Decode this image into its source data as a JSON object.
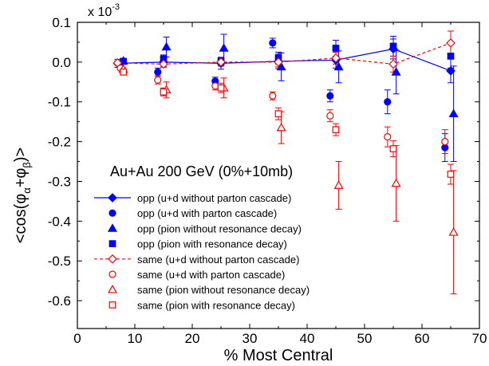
{
  "chart_data": {
    "type": "scatter",
    "title": "",
    "xlabel": "% Most Central",
    "ylabel": "<cos(φα+φβ)>",
    "scale_label": "x 10-3",
    "annotation": "Au+Au 200 GeV (0%+10mb)",
    "xlim": [
      0,
      70
    ],
    "ylim": [
      -0.67,
      0.1
    ],
    "x_ticks": [
      "0",
      "10",
      "20",
      "30",
      "40",
      "50",
      "60",
      "70"
    ],
    "y_ticks": [
      "0.1",
      "0.0",
      "-0.1",
      "-0.2",
      "-0.3",
      "-0.4",
      "-0.5",
      "-0.6"
    ],
    "grid": false,
    "legend_position": "bottom-left",
    "colors": {
      "opp": "#0000ff",
      "same": "#ff0000"
    },
    "series": [
      {
        "name": "opp  (u+d without parton cascade)",
        "color": "#0000ff",
        "marker": "diamond-filled",
        "line": "solid",
        "x": [
          7,
          15,
          25,
          35,
          45,
          55,
          65
        ],
        "y": [
          -0.003,
          0.0,
          -0.003,
          0.002,
          0.005,
          0.033,
          -0.022
        ],
        "err": [
          0.01,
          0.012,
          0.015,
          0.018,
          0.02,
          0.025,
          0.03
        ]
      },
      {
        "name": "opp  (u+d with parton cascade)",
        "color": "#0000ff",
        "marker": "circle-filled",
        "line": "none",
        "x": [
          7.5,
          14,
          24,
          34,
          44,
          54,
          64
        ],
        "y": [
          -0.005,
          -0.025,
          -0.048,
          0.048,
          -0.085,
          -0.1,
          -0.215
        ],
        "err": [
          0.005,
          0.01,
          0.01,
          0.012,
          0.015,
          0.03,
          0.035
        ]
      },
      {
        "name": "opp  (pion without resonance decay)",
        "color": "#0000ff",
        "marker": "triangle-filled",
        "line": "none",
        "x": [
          8,
          15.5,
          25.5,
          35.5,
          45.5,
          55.5,
          65.5
        ],
        "y": [
          0.003,
          0.038,
          0.035,
          -0.012,
          -0.012,
          -0.025,
          -0.13
        ],
        "err": [
          0.005,
          0.025,
          0.035,
          0.035,
          0.04,
          0.055,
          0.12
        ]
      },
      {
        "name": "opp  (pion with resonance decay)",
        "color": "#0000ff",
        "marker": "square-filled",
        "line": "none",
        "x": [
          8,
          15,
          25,
          35,
          45,
          55,
          65
        ],
        "y": [
          0.002,
          0.008,
          0.002,
          0.01,
          0.035,
          0.04,
          0.015
        ],
        "err": [
          0.005,
          0.01,
          0.01,
          0.015,
          0.02,
          0.025,
          0.03
        ]
      },
      {
        "name": "same (u+d without parton cascade)",
        "color": "#ff0000",
        "marker": "diamond-open",
        "line": "dashed",
        "x": [
          7,
          15,
          25,
          35,
          45,
          55,
          65
        ],
        "y": [
          -0.002,
          -0.005,
          0.0,
          0.0,
          0.01,
          -0.005,
          0.048
        ],
        "err": [
          0.005,
          0.008,
          0.01,
          0.012,
          0.015,
          0.02,
          0.03
        ]
      },
      {
        "name": "same (u+d with parton cascade)",
        "color": "#ff0000",
        "marker": "circle-open",
        "line": "none",
        "x": [
          7.5,
          14,
          24,
          34,
          44,
          54,
          64
        ],
        "y": [
          -0.015,
          -0.045,
          -0.06,
          -0.085,
          -0.135,
          -0.188,
          -0.2
        ],
        "err": [
          0.005,
          0.01,
          0.01,
          0.01,
          0.015,
          0.025,
          0.03
        ]
      },
      {
        "name": "same (pion without resonance decay)",
        "color": "#ff0000",
        "marker": "triangle-open",
        "line": "none",
        "x": [
          8,
          15.5,
          25.5,
          35.5,
          45.5,
          55.5,
          65.5
        ],
        "y": [
          -0.018,
          -0.07,
          -0.065,
          -0.165,
          -0.31,
          -0.305,
          -0.428
        ],
        "err": [
          0.005,
          0.02,
          0.025,
          0.04,
          0.06,
          0.095,
          0.155
        ]
      },
      {
        "name": "same (pion with resonance decay)",
        "color": "#ff0000",
        "marker": "square-open",
        "line": "none",
        "x": [
          8,
          15,
          25,
          35,
          45,
          55,
          65
        ],
        "y": [
          -0.025,
          -0.075,
          -0.065,
          -0.13,
          -0.17,
          -0.218,
          -0.282
        ],
        "err": [
          0.005,
          0.01,
          0.012,
          0.015,
          0.015,
          0.02,
          0.025
        ]
      }
    ]
  }
}
